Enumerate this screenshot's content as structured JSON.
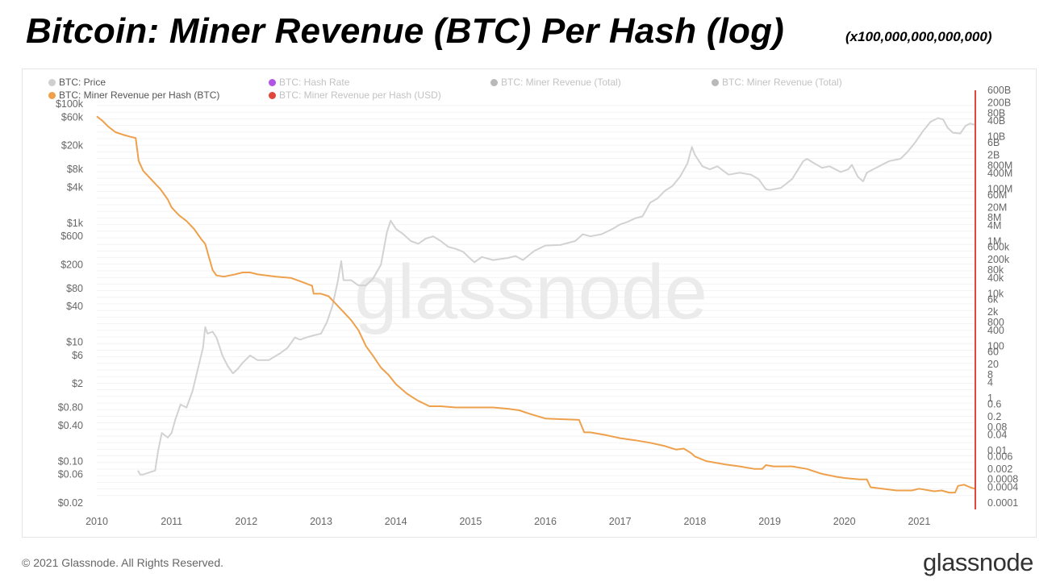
{
  "header": {
    "title": "Bitcoin: Miner Revenue (BTC) Per Hash (log)",
    "subtitle": "(x100,000,000,000,000)"
  },
  "legend": [
    {
      "label": "BTC: Price",
      "color": "#cfcfcf",
      "muted": false
    },
    {
      "label": "BTC: Hash Rate",
      "color": "#b254e6",
      "muted": true
    },
    {
      "label": "BTC: Miner Revenue (Total)",
      "color": "#b8b8b8",
      "muted": true
    },
    {
      "label": "BTC: Miner Revenue (Total)",
      "color": "#b8b8b8",
      "muted": true
    },
    {
      "label": "BTC: Miner Revenue per Hash (BTC)",
      "color": "#f0a04b",
      "muted": false
    },
    {
      "label": "BTC: Miner Revenue per Hash (USD)",
      "color": "#e0473a",
      "muted": true
    }
  ],
  "watermark": "glassnode",
  "footer": {
    "copyright": "© 2021 Glassnode. All Rights Reserved.",
    "brand": "glassnode"
  },
  "colors": {
    "price": "#d2d2d2",
    "revenue_per_hash": "#eea04b",
    "right_axis_line": "#e0473a"
  },
  "chart_data": {
    "type": "line",
    "x_axis": {
      "ticks": [
        "2010",
        "2011",
        "2012",
        "2013",
        "2014",
        "2015",
        "2016",
        "2017",
        "2018",
        "2019",
        "2020",
        "2021"
      ],
      "range": [
        2010.0,
        2021.74
      ]
    },
    "left_axis": {
      "scale": "log",
      "range": [
        0.02,
        100000
      ],
      "ticks": [
        {
          "value": 100000,
          "label": "$100k"
        },
        {
          "value": 60000,
          "label": "$60k"
        },
        {
          "value": 20000,
          "label": "$20k"
        },
        {
          "value": 8000,
          "label": "$8k"
        },
        {
          "value": 4000,
          "label": "$4k"
        },
        {
          "value": 1000,
          "label": "$1k"
        },
        {
          "value": 600,
          "label": "$600"
        },
        {
          "value": 200,
          "label": "$200"
        },
        {
          "value": 80,
          "label": "$80"
        },
        {
          "value": 40,
          "label": "$40"
        },
        {
          "value": 10,
          "label": "$10"
        },
        {
          "value": 6,
          "label": "$6"
        },
        {
          "value": 2,
          "label": "$2"
        },
        {
          "value": 0.8,
          "label": "$0.80"
        },
        {
          "value": 0.4,
          "label": "$0.40"
        },
        {
          "value": 0.1,
          "label": "$0.10"
        },
        {
          "value": 0.06,
          "label": "$0.06"
        },
        {
          "value": 0.02,
          "label": "$0.02"
        }
      ]
    },
    "right_axis": {
      "scale": "log",
      "range": [
        0.0001,
        600000000000
      ],
      "ticks": [
        {
          "value": 600000000000,
          "label": "600B"
        },
        {
          "value": 200000000000,
          "label": "200B"
        },
        {
          "value": 80000000000,
          "label": "80B"
        },
        {
          "value": 40000000000,
          "label": "40B"
        },
        {
          "value": 10000000000,
          "label": "10B"
        },
        {
          "value": 6000000000,
          "label": "6B"
        },
        {
          "value": 2000000000,
          "label": "2B"
        },
        {
          "value": 800000000,
          "label": "800M"
        },
        {
          "value": 400000000,
          "label": "400M"
        },
        {
          "value": 100000000,
          "label": "100M"
        },
        {
          "value": 60000000,
          "label": "60M"
        },
        {
          "value": 20000000,
          "label": "20M"
        },
        {
          "value": 8000000,
          "label": "8M"
        },
        {
          "value": 4000000,
          "label": "4M"
        },
        {
          "value": 1000000,
          "label": "1M"
        },
        {
          "value": 600000,
          "label": "600k"
        },
        {
          "value": 200000,
          "label": "200k"
        },
        {
          "value": 80000,
          "label": "80k"
        },
        {
          "value": 40000,
          "label": "40k"
        },
        {
          "value": 10000,
          "label": "10k"
        },
        {
          "value": 6000,
          "label": "6k"
        },
        {
          "value": 2000,
          "label": "2k"
        },
        {
          "value": 800,
          "label": "800"
        },
        {
          "value": 400,
          "label": "400"
        },
        {
          "value": 100,
          "label": "100"
        },
        {
          "value": 60,
          "label": "60"
        },
        {
          "value": 20,
          "label": "20"
        },
        {
          "value": 8,
          "label": "8"
        },
        {
          "value": 4,
          "label": "4"
        },
        {
          "value": 1,
          "label": "1"
        },
        {
          "value": 0.6,
          "label": "0.6"
        },
        {
          "value": 0.2,
          "label": "0.2"
        },
        {
          "value": 0.08,
          "label": "0.08"
        },
        {
          "value": 0.04,
          "label": "0.04"
        },
        {
          "value": 0.01,
          "label": "0.01"
        },
        {
          "value": 0.006,
          "label": "0.006"
        },
        {
          "value": 0.002,
          "label": "0.002"
        },
        {
          "value": 0.0008,
          "label": "0.0008"
        },
        {
          "value": 0.0004,
          "label": "0.0004"
        },
        {
          "value": 0.0001,
          "label": "0.0001"
        }
      ]
    },
    "grid": "horizontal",
    "legend_position": "top-left",
    "series": [
      {
        "name": "BTC: Price",
        "axis": "left",
        "points": [
          [
            2010.55,
            0.07
          ],
          [
            2010.58,
            0.06
          ],
          [
            2010.62,
            0.06
          ],
          [
            2010.7,
            0.065
          ],
          [
            2010.78,
            0.07
          ],
          [
            2010.82,
            0.15
          ],
          [
            2010.87,
            0.3
          ],
          [
            2010.95,
            0.25
          ],
          [
            2011.0,
            0.3
          ],
          [
            2011.05,
            0.5
          ],
          [
            2011.12,
            0.9
          ],
          [
            2011.2,
            0.8
          ],
          [
            2011.28,
            1.5
          ],
          [
            2011.35,
            3.5
          ],
          [
            2011.42,
            8
          ],
          [
            2011.45,
            18
          ],
          [
            2011.48,
            14
          ],
          [
            2011.55,
            15
          ],
          [
            2011.6,
            12
          ],
          [
            2011.68,
            6
          ],
          [
            2011.75,
            4
          ],
          [
            2011.82,
            3
          ],
          [
            2011.88,
            3.5
          ],
          [
            2011.95,
            4.5
          ],
          [
            2012.05,
            6
          ],
          [
            2012.15,
            5
          ],
          [
            2012.3,
            5
          ],
          [
            2012.45,
            6.5
          ],
          [
            2012.55,
            8
          ],
          [
            2012.65,
            12
          ],
          [
            2012.72,
            11
          ],
          [
            2012.8,
            12
          ],
          [
            2012.9,
            13
          ],
          [
            2013.0,
            14
          ],
          [
            2013.08,
            22
          ],
          [
            2013.15,
            40
          ],
          [
            2013.22,
            100
          ],
          [
            2013.27,
            230
          ],
          [
            2013.3,
            110
          ],
          [
            2013.4,
            110
          ],
          [
            2013.5,
            90
          ],
          [
            2013.6,
            90
          ],
          [
            2013.7,
            120
          ],
          [
            2013.8,
            200
          ],
          [
            2013.88,
            700
          ],
          [
            2013.93,
            1100
          ],
          [
            2014.0,
            800
          ],
          [
            2014.1,
            650
          ],
          [
            2014.2,
            500
          ],
          [
            2014.3,
            450
          ],
          [
            2014.4,
            550
          ],
          [
            2014.5,
            600
          ],
          [
            2014.6,
            500
          ],
          [
            2014.7,
            400
          ],
          [
            2014.8,
            370
          ],
          [
            2014.9,
            330
          ],
          [
            2015.0,
            250
          ],
          [
            2015.05,
            220
          ],
          [
            2015.15,
            270
          ],
          [
            2015.3,
            240
          ],
          [
            2015.5,
            260
          ],
          [
            2015.6,
            280
          ],
          [
            2015.7,
            240
          ],
          [
            2015.85,
            340
          ],
          [
            2016.0,
            420
          ],
          [
            2016.2,
            430
          ],
          [
            2016.4,
            500
          ],
          [
            2016.5,
            650
          ],
          [
            2016.6,
            600
          ],
          [
            2016.75,
            650
          ],
          [
            2016.9,
            800
          ],
          [
            2017.0,
            950
          ],
          [
            2017.1,
            1050
          ],
          [
            2017.2,
            1200
          ],
          [
            2017.3,
            1300
          ],
          [
            2017.4,
            2200
          ],
          [
            2017.5,
            2600
          ],
          [
            2017.6,
            3500
          ],
          [
            2017.7,
            4200
          ],
          [
            2017.8,
            6000
          ],
          [
            2017.9,
            10000
          ],
          [
            2017.96,
            19000
          ],
          [
            2018.0,
            14000
          ],
          [
            2018.1,
            9000
          ],
          [
            2018.2,
            8000
          ],
          [
            2018.3,
            9000
          ],
          [
            2018.45,
            6500
          ],
          [
            2018.6,
            7000
          ],
          [
            2018.75,
            6500
          ],
          [
            2018.85,
            5500
          ],
          [
            2018.95,
            3700
          ],
          [
            2019.0,
            3600
          ],
          [
            2019.15,
            3900
          ],
          [
            2019.3,
            5500
          ],
          [
            2019.45,
            11000
          ],
          [
            2019.5,
            12000
          ],
          [
            2019.6,
            10000
          ],
          [
            2019.7,
            8500
          ],
          [
            2019.8,
            9000
          ],
          [
            2019.95,
            7200
          ],
          [
            2020.05,
            8000
          ],
          [
            2020.1,
            9500
          ],
          [
            2020.18,
            6000
          ],
          [
            2020.25,
            5000
          ],
          [
            2020.3,
            7000
          ],
          [
            2020.5,
            9500
          ],
          [
            2020.6,
            11000
          ],
          [
            2020.75,
            12000
          ],
          [
            2020.85,
            16000
          ],
          [
            2020.95,
            23000
          ],
          [
            2021.05,
            35000
          ],
          [
            2021.15,
            50000
          ],
          [
            2021.25,
            58000
          ],
          [
            2021.32,
            55000
          ],
          [
            2021.38,
            40000
          ],
          [
            2021.45,
            33000
          ],
          [
            2021.55,
            32000
          ],
          [
            2021.62,
            43000
          ],
          [
            2021.68,
            47000
          ],
          [
            2021.74,
            45000
          ]
        ]
      },
      {
        "name": "BTC: Miner Revenue per Hash (BTC)",
        "axis": "right",
        "points": [
          [
            2010.0,
            60000000000
          ],
          [
            2010.08,
            40000000000
          ],
          [
            2010.15,
            25000000000
          ],
          [
            2010.25,
            15000000000
          ],
          [
            2010.35,
            12000000000
          ],
          [
            2010.45,
            10000000000
          ],
          [
            2010.52,
            9000000000
          ],
          [
            2010.56,
            1200000000
          ],
          [
            2010.62,
            500000000
          ],
          [
            2010.75,
            200000000
          ],
          [
            2010.85,
            100000000
          ],
          [
            2010.95,
            40000000
          ],
          [
            2011.0,
            20000000
          ],
          [
            2011.1,
            10000000
          ],
          [
            2011.2,
            6000000
          ],
          [
            2011.3,
            3000000
          ],
          [
            2011.4,
            1200000
          ],
          [
            2011.45,
            800000
          ],
          [
            2011.5,
            250000
          ],
          [
            2011.55,
            80000
          ],
          [
            2011.6,
            50000
          ],
          [
            2011.7,
            45000
          ],
          [
            2011.85,
            55000
          ],
          [
            2011.95,
            65000
          ],
          [
            2012.05,
            65000
          ],
          [
            2012.15,
            55000
          ],
          [
            2012.4,
            45000
          ],
          [
            2012.6,
            40000
          ],
          [
            2012.75,
            28000
          ],
          [
            2012.88,
            20000
          ],
          [
            2012.9,
            10000
          ],
          [
            2013.0,
            10000
          ],
          [
            2013.1,
            8000
          ],
          [
            2013.2,
            4000
          ],
          [
            2013.3,
            2000
          ],
          [
            2013.4,
            1000
          ],
          [
            2013.5,
            400
          ],
          [
            2013.6,
            100
          ],
          [
            2013.7,
            40
          ],
          [
            2013.8,
            15
          ],
          [
            2013.9,
            8
          ],
          [
            2014.0,
            3.5
          ],
          [
            2014.15,
            1.5
          ],
          [
            2014.3,
            0.8
          ],
          [
            2014.45,
            0.5
          ],
          [
            2014.6,
            0.5
          ],
          [
            2014.8,
            0.45
          ],
          [
            2015.0,
            0.45
          ],
          [
            2015.3,
            0.45
          ],
          [
            2015.5,
            0.4
          ],
          [
            2015.65,
            0.35
          ],
          [
            2015.8,
            0.25
          ],
          [
            2016.0,
            0.17
          ],
          [
            2016.2,
            0.16
          ],
          [
            2016.45,
            0.15
          ],
          [
            2016.52,
            0.05
          ],
          [
            2016.6,
            0.05
          ],
          [
            2016.8,
            0.04
          ],
          [
            2017.0,
            0.03
          ],
          [
            2017.2,
            0.025
          ],
          [
            2017.4,
            0.02
          ],
          [
            2017.6,
            0.015
          ],
          [
            2017.75,
            0.011
          ],
          [
            2017.85,
            0.012
          ],
          [
            2017.95,
            0.008
          ],
          [
            2018.0,
            0.006
          ],
          [
            2018.15,
            0.004
          ],
          [
            2018.4,
            0.003
          ],
          [
            2018.6,
            0.0025
          ],
          [
            2018.8,
            0.002
          ],
          [
            2018.9,
            0.002
          ],
          [
            2018.95,
            0.0028
          ],
          [
            2019.05,
            0.0025
          ],
          [
            2019.3,
            0.0025
          ],
          [
            2019.5,
            0.002
          ],
          [
            2019.7,
            0.0013
          ],
          [
            2019.9,
            0.001
          ],
          [
            2020.0,
            0.0009
          ],
          [
            2020.2,
            0.0008
          ],
          [
            2020.3,
            0.0008
          ],
          [
            2020.35,
            0.0004
          ],
          [
            2020.5,
            0.00035
          ],
          [
            2020.7,
            0.0003
          ],
          [
            2020.9,
            0.0003
          ],
          [
            2021.0,
            0.00035
          ],
          [
            2021.2,
            0.00028
          ],
          [
            2021.3,
            0.0003
          ],
          [
            2021.4,
            0.00025
          ],
          [
            2021.48,
            0.00025
          ],
          [
            2021.52,
            0.00045
          ],
          [
            2021.6,
            0.0005
          ],
          [
            2021.68,
            0.0004
          ],
          [
            2021.74,
            0.00035
          ]
        ]
      }
    ]
  }
}
